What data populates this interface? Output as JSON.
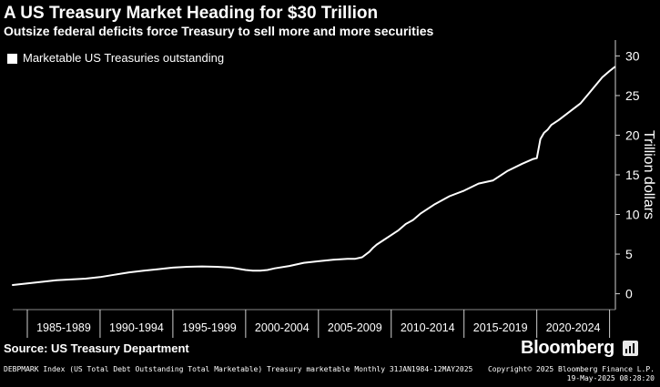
{
  "title": "A US Treasury Market Heading for $30 Trillion",
  "subtitle": "Outsize federal deficits force Treasury to sell more and more securities",
  "source": "Source: US Treasury Department",
  "brand": "Bloomberg",
  "footer": {
    "left": "DEBPMARK Index (US Total Debt Outstanding Total Marketable) Treasury marketable  Monthly 31JAN1984-12MAY2025",
    "copyright": "Copyright© 2025 Bloomberg Finance L.P.",
    "date": "19-May-2025 08:28:20"
  },
  "colors": {
    "background": "#000000",
    "line": "#ffffff",
    "text": "#ffffff"
  },
  "chart_data": {
    "type": "line",
    "title": "A US Treasury Market Heading for $30 Trillion",
    "subtitle": "Outsize federal deficits force Treasury to sell more and more securities",
    "ylabel": "Trillion dollars",
    "ylim": [
      -2,
      32
    ],
    "yticks": [
      0,
      5,
      10,
      15,
      20,
      25,
      30
    ],
    "xlim": [
      1984.0,
      2025.4
    ],
    "x_categories": [
      "1985-1989",
      "1990-1994",
      "1995-1999",
      "2000-2004",
      "2005-2009",
      "2010-2014",
      "2015-2019",
      "2020-2024"
    ],
    "grid": false,
    "legend_position": "top-left",
    "series": [
      {
        "name": "Marketable US Treasuries outstanding",
        "color": "#ffffff",
        "x": [
          1984.0,
          1985.0,
          1986.0,
          1987.0,
          1988.0,
          1989.0,
          1990.0,
          1991.0,
          1992.0,
          1993.0,
          1994.0,
          1995.0,
          1996.0,
          1997.0,
          1998.0,
          1999.0,
          2000.0,
          2000.5,
          2001.0,
          2001.5,
          2002.0,
          2003.0,
          2004.0,
          2005.0,
          2006.0,
          2007.0,
          2007.5,
          2008.0,
          2008.5,
          2008.75,
          2009.0,
          2009.5,
          2010.0,
          2010.5,
          2011.0,
          2011.5,
          2012.0,
          2012.5,
          2013.0,
          2014.0,
          2015.0,
          2016.0,
          2017.0,
          2018.0,
          2019.0,
          2019.75,
          2020.0,
          2020.25,
          2020.5,
          2020.75,
          2021.0,
          2021.5,
          2022.0,
          2022.5,
          2023.0,
          2023.5,
          2024.0,
          2024.5,
          2025.0,
          2025.35
        ],
        "values": [
          1.1,
          1.3,
          1.5,
          1.7,
          1.8,
          1.9,
          2.1,
          2.4,
          2.7,
          2.9,
          3.1,
          3.3,
          3.4,
          3.45,
          3.4,
          3.3,
          3.0,
          2.9,
          2.9,
          3.0,
          3.2,
          3.5,
          3.9,
          4.1,
          4.3,
          4.4,
          4.4,
          4.6,
          5.3,
          5.8,
          6.2,
          6.8,
          7.4,
          8.0,
          8.8,
          9.3,
          10.1,
          10.7,
          11.3,
          12.3,
          13.0,
          13.9,
          14.3,
          15.5,
          16.4,
          17.0,
          17.1,
          19.5,
          20.3,
          20.7,
          21.3,
          21.9,
          22.6,
          23.3,
          24.0,
          25.1,
          26.2,
          27.3,
          28.1,
          28.6
        ]
      }
    ]
  }
}
